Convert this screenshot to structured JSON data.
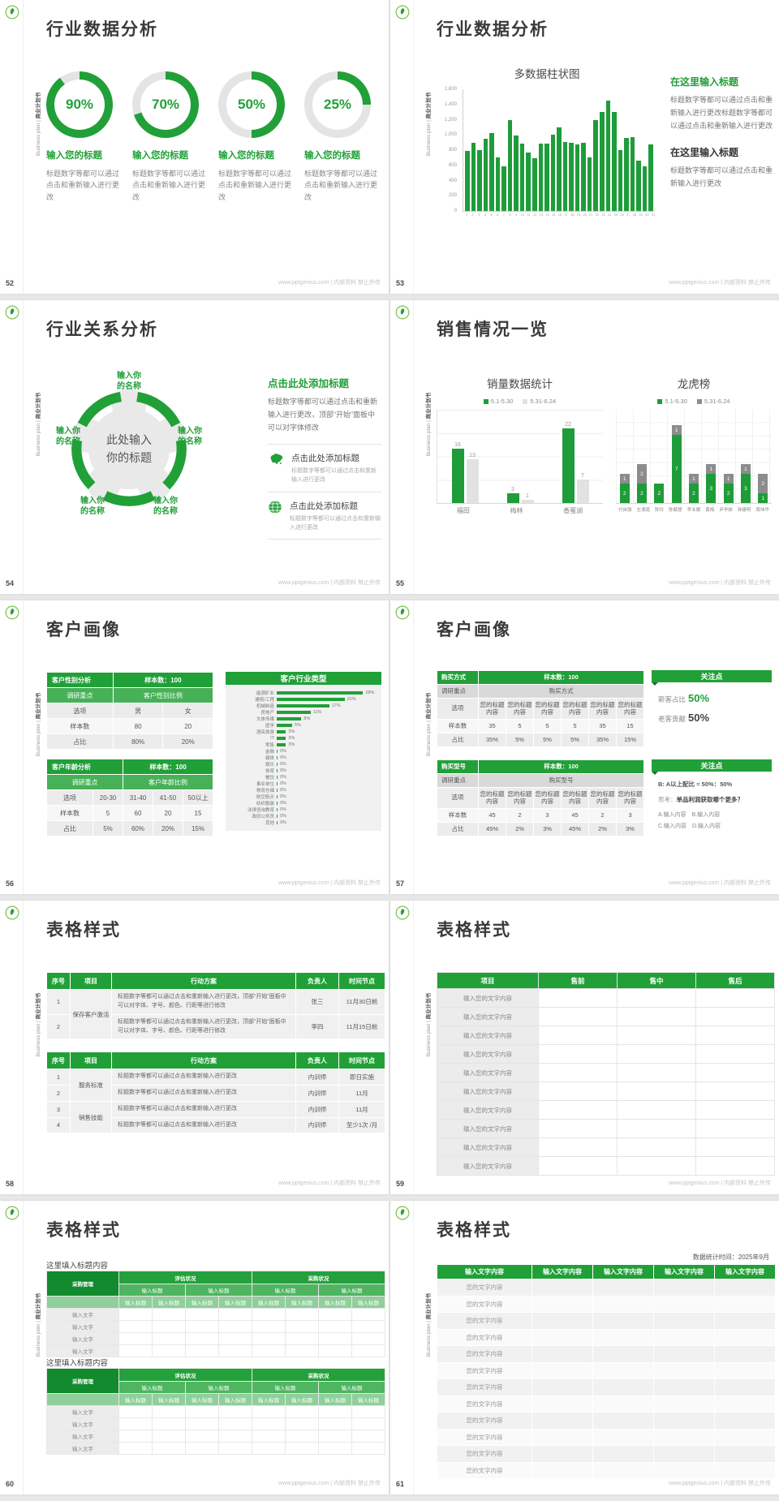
{
  "common": {
    "footer": "www.pptgenius.com | 内部资料 禁止外传",
    "rail_en": "Business plan | ",
    "rail_zh": "商业计划书",
    "icons": {
      "logo": "leaf-logo",
      "map": "china-map-icon",
      "globe": "globe-icon"
    },
    "colors": {
      "green": "#21A038",
      "green_mid": "#47B158",
      "green_light": "#8FCF9B",
      "gray_bar": "#D9D9D9",
      "dark_gray_series": "#8C8C8C",
      "light_gray_series": "#E2E2E2"
    }
  },
  "chart_data": [
    {
      "id": "donut-percents",
      "type": "pie",
      "title": "行业数据分析 donut percentages",
      "values": [
        90,
        70,
        50,
        25
      ],
      "labels": [
        "输入您的标题",
        "输入您的标题",
        "输入您的标题",
        "输入您的标题"
      ]
    },
    {
      "id": "industry-columns",
      "type": "bar",
      "title": "多数据柱状图",
      "x_labels": [
        "1",
        "2",
        "3",
        "4",
        "5",
        "6",
        "7",
        "8",
        "9",
        "10",
        "11",
        "12",
        "13",
        "14",
        "15",
        "16",
        "17",
        "18",
        "19",
        "20",
        "21",
        "22",
        "23",
        "24",
        "25",
        "26",
        "27",
        "28",
        "29",
        "30",
        "31"
      ],
      "values": [
        790,
        900,
        800,
        950,
        1020,
        700,
        590,
        1200,
        990,
        890,
        770,
        690,
        890,
        890,
        1000,
        1100,
        905,
        900,
        880,
        900,
        700,
        1190,
        1300,
        1450,
        1300,
        800,
        960,
        970,
        660,
        590,
        870
      ],
      "ylim": [
        0,
        1600
      ],
      "yticks": [
        "0",
        "200",
        "400",
        "600",
        "800",
        "1,000",
        "1,200",
        "1,400",
        "1,600"
      ],
      "xlabel": "",
      "ylabel": ""
    },
    {
      "id": "sales-grouped",
      "type": "bar",
      "title": "销量数据统计",
      "categories": [
        "福田",
        "梅林",
        "香蜜湖"
      ],
      "series": [
        {
          "name": "5.1-5.30",
          "values": [
            16,
            3,
            22
          ]
        },
        {
          "name": "5.31-6.24",
          "values": [
            13,
            1,
            7
          ]
        }
      ],
      "ylim": [
        0,
        24
      ],
      "legend_position": "top"
    },
    {
      "id": "sales-stacked",
      "type": "bar",
      "stacked": true,
      "title": "龙虎榜",
      "categories": [
        "付自强",
        "左湘南",
        "陈玲",
        "陈毓慧",
        "李业顺",
        "黄梅",
        "尹华妹",
        "钟建明",
        "周伟华"
      ],
      "series": [
        {
          "name": "5.1-5.30",
          "values": [
            2,
            2,
            2,
            7,
            2,
            3,
            2,
            3,
            1
          ]
        },
        {
          "name": "5.31-6.24",
          "values": [
            1,
            2,
            0,
            1,
            1,
            1,
            1,
            1,
            2
          ]
        }
      ],
      "ylim": [
        0,
        9
      ],
      "legend_position": "top",
      "grid": true
    },
    {
      "id": "industry-hbar",
      "type": "bar",
      "horizontal": true,
      "title": "客户行业类型",
      "categories": [
        "能源矿业",
        "建筑/工程",
        "机械制造",
        "房地产",
        "文体传媒",
        "医学",
        "酒店旅游",
        "IT",
        "零售",
        "金融",
        "媒体",
        "娱乐",
        "体育",
        "餐饮",
        "事业单位",
        "物流仓储",
        "航空航天",
        "纺织服装",
        "法律咨询教育",
        "政府公务员",
        "其他"
      ],
      "values": [
        28,
        22,
        17,
        11,
        8,
        5,
        3,
        3,
        3,
        0,
        0,
        0,
        0,
        0,
        0,
        0,
        0,
        0,
        0,
        0,
        0
      ],
      "unit": "%"
    }
  ],
  "slides": {
    "s52": {
      "page": "52",
      "title": "行业数据分析",
      "items": [
        {
          "pct": 90,
          "pct_label": "90%",
          "label": "输入您的标题",
          "body": "标题数字等都可以通过点击和重新输入进行更改"
        },
        {
          "pct": 70,
          "pct_label": "70%",
          "label": "输入您的标题",
          "body": "标题数字等都可以通过点击和重新输入进行更改"
        },
        {
          "pct": 50,
          "pct_label": "50%",
          "label": "输入您的标题",
          "body": "标题数字等都可以通过点击和重新输入进行更改"
        },
        {
          "pct": 25,
          "pct_label": "25%",
          "label": "输入您的标题",
          "body": "标题数字等都可以通过点击和重新输入进行更改"
        }
      ]
    },
    "s53": {
      "page": "53",
      "title": "行业数据分析",
      "block1_head": "在这里输入标题",
      "block1_body": "标题数字等都可以通过点击和重新输入进行更改标题数字等都可以通过点击和重新输入进行更改",
      "block2_head": "在这里输入标题",
      "block2_body": "标题数字等都可以通过点击和重新输入进行更改"
    },
    "s54": {
      "page": "54",
      "title": "行业关系分析",
      "center_line1": "此处输入",
      "center_line2": "你的标题",
      "petals": [
        {
          "l1": "输入你",
          "l2": "的名称"
        },
        {
          "l1": "输入你",
          "l2": "的名称"
        },
        {
          "l1": "输入你",
          "l2": "的名称"
        },
        {
          "l1": "输入你",
          "l2": "的名称"
        },
        {
          "l1": "输入你",
          "l2": "的名称"
        }
      ],
      "main_head": "点击此处添加标题",
      "main_body": "标题数字等都可以通过点击和重新输入进行更改，顶部“开始”面板中可以对字体修改",
      "item1_head": "点击此处添加标题",
      "item1_body": "标题数字等都可以通过点击和重新输入进行更改",
      "item2_head": "点击此处添加标题",
      "item2_body": "标题数字等都可以通过点击和重新输入进行更改"
    },
    "s55": {
      "page": "55",
      "title": "销售情况一览"
    },
    "s56": {
      "page": "56",
      "title": "客户画像",
      "t1": {
        "h1": "客户性别分析",
        "h1r": "样本数：100",
        "h2": "调研重点",
        "h2r": "客户性别比例",
        "rows": [
          [
            "选项",
            "男",
            "女"
          ],
          [
            "样本数",
            "80",
            "20"
          ],
          [
            "占比",
            "80%",
            "20%"
          ]
        ]
      },
      "t2": {
        "h1": "客户年龄分析",
        "h1r": "样本数：100",
        "h2": "调研重点",
        "h2r": "客户年龄比例",
        "rows": [
          [
            "选项",
            "20-30",
            "31-40",
            "41-50",
            "50以上"
          ],
          [
            "样本数",
            "5",
            "60",
            "20",
            "15"
          ],
          [
            "占比",
            "5%",
            "60%",
            "20%",
            "15%"
          ]
        ]
      }
    },
    "s57": {
      "page": "57",
      "title": "客户画像",
      "t1": {
        "h1": "购买方式",
        "h1r": "样本数：100",
        "h2": "调研重点",
        "h2r": "购买方式",
        "opt": "您的标题内容",
        "rows": [
          [
            "选项",
            "您的标题内容",
            "您的标题内容",
            "您的标题内容",
            "您的标题内容",
            "您的标题内容",
            "您的标题内容"
          ],
          [
            "样本数",
            "35",
            "5",
            "5",
            "5",
            "35",
            "15"
          ],
          [
            "占比",
            "35%",
            "5%",
            "5%",
            "5%",
            "35%",
            "15%"
          ]
        ]
      },
      "p1": {
        "title": "关注点",
        "line1_label": "新客占比",
        "line1_value": "50%",
        "line2_label": "老客贡献",
        "line2_value": "50%"
      },
      "t2": {
        "h1": "购买型号",
        "h1r": "样本数：100",
        "h2": "调研重点",
        "h2r": "购买型号",
        "rows": [
          [
            "选项",
            "您的标题内容",
            "您的标题内容",
            "您的标题内容",
            "您的标题内容",
            "您的标题内容",
            "您的标题内容"
          ],
          [
            "样本数",
            "45",
            "2",
            "3",
            "45",
            "2",
            "3"
          ],
          [
            "占比",
            "45%",
            "2%",
            "3%",
            "45%",
            "2%",
            "3%"
          ]
        ]
      },
      "p2": {
        "title": "关注点",
        "line1": "B: A以上配比 = 50%：50%",
        "line2_label": "思考：",
        "line2": "单品利润获取哪个更多？",
        "line3": "A.输入内容　B.输入内容",
        "line4": "C.输入内容　D.输入内容"
      }
    },
    "s58": {
      "page": "58",
      "title": "表格样式",
      "headers": [
        "序号",
        "项目",
        "行动方案",
        "负责人",
        "时间节点"
      ],
      "t1": {
        "project": "保存客户激活",
        "r1": {
          "no": "1",
          "plan": "标题数字等都可以通过点击和重新输入进行更改，顶部“开始”面板中可以对字体、字号、颜色、行距等进行修改",
          "owner": "张三",
          "time": "11月30日前"
        },
        "r2": {
          "no": "2",
          "plan": "标题数字等都可以通过点击和重新输入进行更改，顶部“开始”面板中可以对字体、字号、颜色、行距等进行修改",
          "owner": "李四",
          "time": "11月15日前"
        }
      },
      "t2": {
        "project1": "服务标准",
        "project2": "销售技能",
        "r1": {
          "no": "1",
          "plan": "标题数字等都可以通过点击和重新输入进行更改",
          "owner": "内训师",
          "time": "即日实施"
        },
        "r2": {
          "no": "2",
          "plan": "标题数字等都可以通过点击和重新输入进行更改",
          "owner": "内训师",
          "time": "11月"
        },
        "r3": {
          "no": "3",
          "plan": "标题数字等都可以通过点击和重新输入进行更改",
          "owner": "内训师",
          "time": "11月"
        },
        "r4": {
          "no": "4",
          "plan": "标题数字等都可以通过点击和重新输入进行更改",
          "owner": "内训师",
          "time": "至少1次 /月"
        }
      }
    },
    "s59": {
      "page": "59",
      "title": "表格样式",
      "headers": [
        "项目",
        "售前",
        "售中",
        "售后"
      ],
      "rows": [
        "输入您的文字内容",
        "输入您的文字内容",
        "输入您的文字内容",
        "输入您的文字内容",
        "输入您的文字内容",
        "输入您的文字内容",
        "输入您的文字内容",
        "输入您的文字内容",
        "输入您的文字内容",
        "输入您的文字内容"
      ]
    },
    "s60": {
      "page": "60",
      "title": "表格样式",
      "section_title": "这里填入标题内容",
      "corner": "采购管理",
      "group1": "评估状况",
      "group2": "采购状况",
      "sub4": [
        "输入标题",
        "输入标题",
        "输入标题",
        "输入标题"
      ],
      "sub8": [
        "输入标题",
        "输入标题",
        "输入标题",
        "输入标题",
        "输入标题",
        "输入标题",
        "输入标题",
        "输入标题"
      ],
      "rows": [
        "输入文字",
        "输入文字",
        "输入文字",
        "输入文字"
      ]
    },
    "s61": {
      "page": "61",
      "title": "表格样式",
      "note": "数据统计时间：2025年9月",
      "headers": [
        "输入文字内容",
        "输入文字内容",
        "输入文字内容",
        "输入文字内容",
        "输入文字内容"
      ],
      "rows": [
        "您的文字内容",
        "您的文字内容",
        "您的文字内容",
        "您的文字内容",
        "您的文字内容",
        "您的文字内容",
        "您的文字内容",
        "您的文字内容",
        "您的文字内容",
        "您的文字内容",
        "您的文字内容",
        "您的文字内容"
      ]
    }
  }
}
